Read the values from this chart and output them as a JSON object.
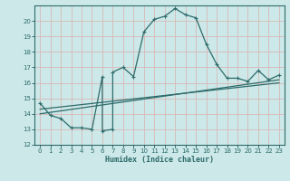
{
  "xlabel": "Humidex (Indice chaleur)",
  "bg_color": "#cce8e8",
  "grid_color": "#b0d0d0",
  "line_color": "#2e6b6b",
  "xlim": [
    -0.5,
    23.5
  ],
  "ylim": [
    12,
    21
  ],
  "yticks": [
    12,
    13,
    14,
    15,
    16,
    17,
    18,
    19,
    20
  ],
  "xticks": [
    0,
    1,
    2,
    3,
    4,
    5,
    6,
    7,
    8,
    9,
    10,
    11,
    12,
    13,
    14,
    15,
    16,
    17,
    18,
    19,
    20,
    21,
    22,
    23
  ],
  "curve1_x": [
    0,
    1,
    2,
    3,
    4,
    5,
    6,
    6,
    7,
    7,
    8,
    9,
    10,
    11,
    12,
    13,
    14,
    15,
    16,
    17,
    18,
    19,
    20,
    21,
    22,
    23
  ],
  "curve1_y": [
    14.7,
    13.9,
    13.7,
    13.1,
    13.1,
    13.0,
    16.4,
    12.9,
    13.0,
    16.7,
    17.0,
    16.4,
    19.3,
    20.1,
    20.3,
    20.8,
    20.4,
    20.2,
    18.5,
    17.2,
    16.3,
    16.3,
    16.1,
    16.8,
    16.2,
    16.5
  ],
  "curve2_x": [
    0,
    23
  ],
  "curve2_y": [
    14.0,
    16.2
  ],
  "curve3_x": [
    0,
    23
  ],
  "curve3_y": [
    14.3,
    16.0
  ]
}
